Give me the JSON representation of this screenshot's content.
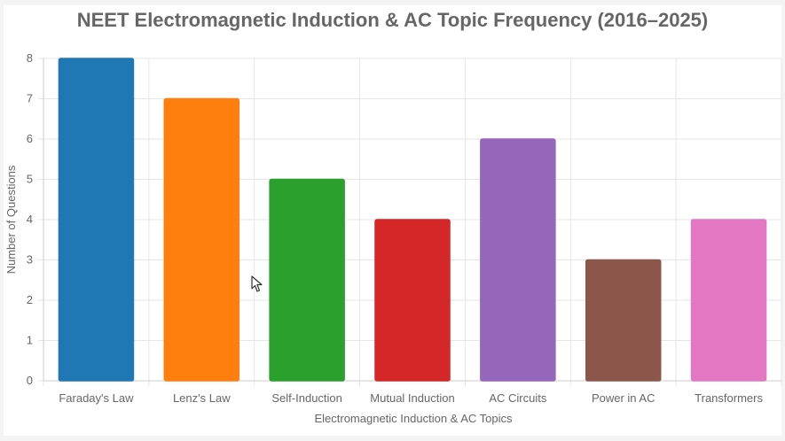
{
  "chart_data": {
    "type": "bar",
    "title": "NEET Electromagnetic Induction & AC Topic Frequency (2016–2025)",
    "xlabel": "Electromagnetic Induction & AC Topics",
    "ylabel": "Number of Questions",
    "ylim": [
      0,
      8
    ],
    "yticks": [
      "0",
      "1",
      "2",
      "3",
      "4",
      "5",
      "6",
      "7",
      "8"
    ],
    "grid": true,
    "categories": [
      "Faraday's Law",
      "Lenz's Law",
      "Self-Induction",
      "Mutual Induction",
      "AC Circuits",
      "Power in AC",
      "Transformers"
    ],
    "values": [
      8,
      7,
      5,
      4,
      6,
      3,
      4
    ],
    "colors": [
      "#1f77b4",
      "#ff7f0e",
      "#2ca02c",
      "#d62728",
      "#9467bd",
      "#8c564b",
      "#e377c2"
    ]
  },
  "icons": {
    "cursor": "mouse-pointer-icon"
  }
}
